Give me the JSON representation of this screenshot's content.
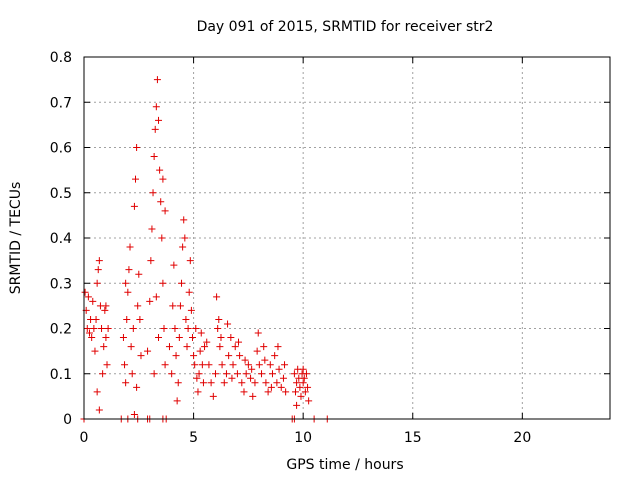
{
  "chart_data": {
    "type": "scatter",
    "title": "Day 091 of 2015, SRMTID for receiver str2",
    "xlabel": "GPS time / hours",
    "ylabel": "SRMTID / TECUs",
    "xlim": [
      0,
      24
    ],
    "ylim": [
      0,
      0.8
    ],
    "xticks": [
      0,
      5,
      10,
      15,
      20
    ],
    "yticks": [
      0,
      0.1,
      0.2,
      0.3,
      0.4,
      0.5,
      0.6,
      0.7,
      0.8
    ],
    "grid": true,
    "marker": "+",
    "color": "#e00000",
    "series": [
      {
        "name": "str2",
        "points": [
          [
            0.05,
            0.28
          ],
          [
            0.1,
            0.24
          ],
          [
            0.15,
            0.2
          ],
          [
            0.2,
            0.27
          ],
          [
            0.25,
            0.19
          ],
          [
            0.3,
            0.22
          ],
          [
            0.35,
            0.18
          ],
          [
            0.4,
            0.26
          ],
          [
            0.45,
            0.2
          ],
          [
            0.5,
            0.15
          ],
          [
            0.55,
            0.22
          ],
          [
            0.6,
            0.3
          ],
          [
            0.65,
            0.33
          ],
          [
            0.7,
            0.35
          ],
          [
            0.75,
            0.25
          ],
          [
            0.8,
            0.2
          ],
          [
            0.85,
            0.1
          ],
          [
            0.9,
            0.16
          ],
          [
            0.95,
            0.24
          ],
          [
            1.0,
            0.18
          ],
          [
            1.05,
            0.12
          ],
          [
            1.1,
            0.2
          ],
          [
            0.7,
            0.02
          ],
          [
            0.6,
            0.06
          ],
          [
            1.0,
            0.25
          ],
          [
            1.8,
            0.18
          ],
          [
            1.85,
            0.12
          ],
          [
            1.9,
            0.08
          ],
          [
            1.95,
            0.22
          ],
          [
            2.0,
            0.28
          ],
          [
            2.05,
            0.33
          ],
          [
            2.1,
            0.38
          ],
          [
            2.15,
            0.16
          ],
          [
            2.2,
            0.1
          ],
          [
            2.25,
            0.2
          ],
          [
            2.3,
            0.47
          ],
          [
            2.35,
            0.53
          ],
          [
            2.4,
            0.6
          ],
          [
            2.45,
            0.25
          ],
          [
            2.5,
            0.32
          ],
          [
            2.55,
            0.22
          ],
          [
            2.6,
            0.14
          ],
          [
            2.3,
            0.01
          ],
          [
            2.4,
            0.07
          ],
          [
            1.9,
            0.3
          ],
          [
            2.9,
            0.15
          ],
          [
            3.0,
            0.26
          ],
          [
            3.05,
            0.35
          ],
          [
            3.1,
            0.42
          ],
          [
            3.15,
            0.5
          ],
          [
            3.2,
            0.58
          ],
          [
            3.25,
            0.64
          ],
          [
            3.3,
            0.69
          ],
          [
            3.35,
            0.75
          ],
          [
            3.4,
            0.66
          ],
          [
            3.45,
            0.55
          ],
          [
            3.5,
            0.48
          ],
          [
            3.55,
            0.4
          ],
          [
            3.6,
            0.3
          ],
          [
            3.65,
            0.2
          ],
          [
            3.7,
            0.12
          ],
          [
            3.2,
            0.1
          ],
          [
            3.3,
            0.27
          ],
          [
            3.4,
            0.18
          ],
          [
            3.6,
            0.53
          ],
          [
            3.7,
            0.46
          ],
          [
            3.9,
            0.16
          ],
          [
            4.0,
            0.1
          ],
          [
            4.05,
            0.25
          ],
          [
            4.1,
            0.34
          ],
          [
            4.15,
            0.2
          ],
          [
            4.2,
            0.14
          ],
          [
            4.25,
            0.04
          ],
          [
            4.3,
            0.08
          ],
          [
            4.35,
            0.18
          ],
          [
            4.4,
            0.25
          ],
          [
            4.45,
            0.3
          ],
          [
            4.5,
            0.38
          ],
          [
            4.55,
            0.44
          ],
          [
            4.6,
            0.4
          ],
          [
            4.65,
            0.22
          ],
          [
            4.7,
            0.16
          ],
          [
            4.75,
            0.2
          ],
          [
            4.8,
            0.28
          ],
          [
            4.85,
            0.35
          ],
          [
            4.9,
            0.24
          ],
          [
            4.95,
            0.18
          ],
          [
            5.0,
            0.14
          ],
          [
            5.05,
            0.12
          ],
          [
            5.1,
            0.2
          ],
          [
            5.15,
            0.09
          ],
          [
            5.2,
            0.06
          ],
          [
            5.25,
            0.1
          ],
          [
            5.3,
            0.15
          ],
          [
            5.35,
            0.19
          ],
          [
            5.4,
            0.12
          ],
          [
            5.45,
            0.08
          ],
          [
            5.5,
            0.16
          ],
          [
            5.6,
            0.17
          ],
          [
            5.7,
            0.12
          ],
          [
            5.8,
            0.08
          ],
          [
            5.9,
            0.05
          ],
          [
            6.0,
            0.1
          ],
          [
            6.1,
            0.2
          ],
          [
            6.15,
            0.22
          ],
          [
            6.2,
            0.16
          ],
          [
            6.3,
            0.12
          ],
          [
            6.4,
            0.08
          ],
          [
            6.5,
            0.1
          ],
          [
            6.6,
            0.14
          ],
          [
            6.7,
            0.18
          ],
          [
            6.8,
            0.12
          ],
          [
            6.9,
            0.16
          ],
          [
            7.0,
            0.1
          ],
          [
            7.1,
            0.14
          ],
          [
            7.2,
            0.08
          ],
          [
            7.3,
            0.06
          ],
          [
            7.4,
            0.1
          ],
          [
            7.5,
            0.12
          ],
          [
            7.6,
            0.09
          ],
          [
            7.7,
            0.05
          ],
          [
            7.8,
            0.08
          ],
          [
            7.9,
            0.15
          ],
          [
            8.0,
            0.12
          ],
          [
            8.1,
            0.1
          ],
          [
            8.2,
            0.16
          ],
          [
            8.3,
            0.08
          ],
          [
            8.4,
            0.06
          ],
          [
            8.5,
            0.12
          ],
          [
            8.6,
            0.1
          ],
          [
            8.7,
            0.14
          ],
          [
            8.8,
            0.08
          ],
          [
            8.9,
            0.11
          ],
          [
            9.0,
            0.07
          ],
          [
            9.1,
            0.09
          ],
          [
            9.2,
            0.06
          ],
          [
            6.05,
            0.27
          ],
          [
            6.25,
            0.18
          ],
          [
            6.55,
            0.21
          ],
          [
            6.75,
            0.09
          ],
          [
            7.05,
            0.17
          ],
          [
            7.35,
            0.13
          ],
          [
            7.65,
            0.11
          ],
          [
            7.95,
            0.19
          ],
          [
            8.25,
            0.13
          ],
          [
            8.55,
            0.07
          ],
          [
            8.85,
            0.16
          ],
          [
            9.15,
            0.12
          ],
          [
            9.6,
            0.1
          ],
          [
            9.65,
            0.06
          ],
          [
            9.7,
            0.08
          ],
          [
            9.75,
            0.11
          ],
          [
            9.8,
            0.09
          ],
          [
            9.85,
            0.07
          ],
          [
            9.9,
            0.05
          ],
          [
            9.95,
            0.1
          ],
          [
            10.0,
            0.08
          ],
          [
            10.05,
            0.09
          ],
          [
            10.1,
            0.06
          ],
          [
            10.15,
            0.1
          ],
          [
            10.2,
            0.07
          ],
          [
            10.25,
            0.04
          ],
          [
            9.7,
            0.03
          ],
          [
            10.0,
            0.11
          ],
          [
            0.0,
            0.0
          ],
          [
            1.7,
            0.0
          ],
          [
            2.0,
            0.0
          ],
          [
            2.45,
            0.0
          ],
          [
            2.9,
            0.0
          ],
          [
            3.0,
            0.0
          ],
          [
            3.6,
            0.0
          ],
          [
            3.75,
            0.0
          ],
          [
            9.5,
            0.0
          ],
          [
            9.6,
            0.0
          ],
          [
            10.5,
            0.0
          ],
          [
            11.1,
            0.0
          ]
        ]
      }
    ]
  }
}
